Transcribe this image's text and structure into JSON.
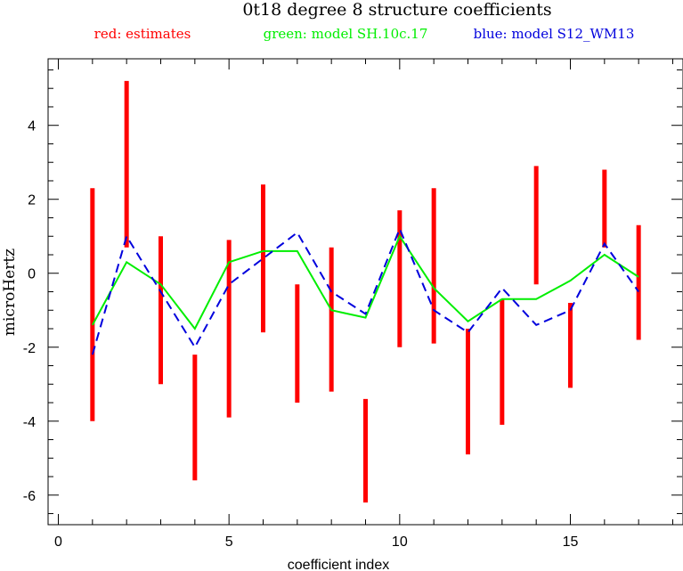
{
  "chart_data": {
    "type": "line",
    "title": "0t18 degree 8 structure coefficients",
    "legend": {
      "estimates": "red: estimates",
      "model_green": "green: model SH.10c.17",
      "model_blue": "blue: model S12_WM13"
    },
    "xlabel": "coefficient index",
    "ylabel": "microHertz",
    "xlim": [
      -0.3,
      18.3
    ],
    "ylim": [
      -6.8,
      5.8
    ],
    "x_ticks": [
      0,
      5,
      10,
      15
    ],
    "y_ticks": [
      -6,
      -4,
      -2,
      0,
      2,
      4
    ],
    "grid": false,
    "colors": {
      "estimates": "#ff0000",
      "model_green": "#00ee00",
      "model_blue": "#0000dd"
    },
    "estimates": [
      {
        "x": 1,
        "low": -4.0,
        "high": 2.3
      },
      {
        "x": 2,
        "low": 0.7,
        "high": 5.2
      },
      {
        "x": 3,
        "low": -3.0,
        "high": 1.0
      },
      {
        "x": 4,
        "low": -5.6,
        "high": -2.2
      },
      {
        "x": 5,
        "low": -3.9,
        "high": 0.9
      },
      {
        "x": 6,
        "low": -1.6,
        "high": 2.4
      },
      {
        "x": 7,
        "low": -3.5,
        "high": -0.3
      },
      {
        "x": 8,
        "low": -3.2,
        "high": 0.7
      },
      {
        "x": 9,
        "low": -6.2,
        "high": -3.4
      },
      {
        "x": 10,
        "low": -2.0,
        "high": 1.7
      },
      {
        "x": 11,
        "low": -1.9,
        "high": 2.3
      },
      {
        "x": 12,
        "low": -4.9,
        "high": -1.5
      },
      {
        "x": 13,
        "low": -4.1,
        "high": -0.7
      },
      {
        "x": 14,
        "low": -0.3,
        "high": 2.9
      },
      {
        "x": 15,
        "low": -3.1,
        "high": -0.8
      },
      {
        "x": 16,
        "low": 0.7,
        "high": 2.8
      },
      {
        "x": 17,
        "low": -1.8,
        "high": 1.3
      }
    ],
    "series": [
      {
        "key": "model_green",
        "dashed": false,
        "x": [
          1,
          2,
          3,
          4,
          5,
          6,
          7,
          8,
          9,
          10,
          11,
          12,
          13,
          14,
          15,
          16,
          17
        ],
        "values": [
          -1.4,
          0.3,
          -0.3,
          -1.5,
          0.3,
          0.6,
          0.6,
          -1.0,
          -1.2,
          1.0,
          -0.4,
          -1.3,
          -0.7,
          -0.7,
          -0.2,
          0.5,
          -0.1
        ]
      },
      {
        "key": "model_blue",
        "dashed": true,
        "x": [
          1,
          2,
          3,
          4,
          5,
          6,
          7,
          8,
          9,
          10,
          11,
          12,
          13,
          14,
          15,
          16,
          17
        ],
        "values": [
          -2.2,
          1.0,
          -0.5,
          -2.0,
          -0.3,
          0.4,
          1.1,
          -0.5,
          -1.1,
          1.2,
          -1.0,
          -1.6,
          -0.4,
          -1.4,
          -1.0,
          0.8,
          -0.5
        ]
      }
    ]
  }
}
